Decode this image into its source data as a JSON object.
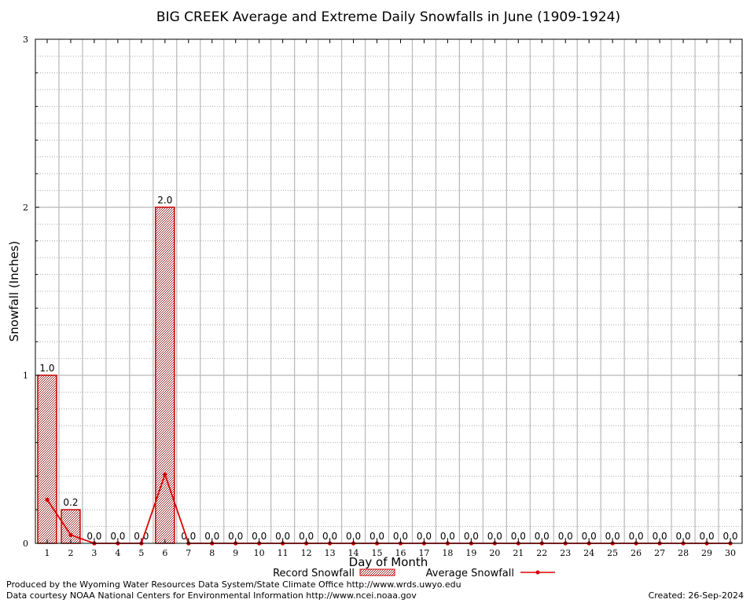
{
  "chart_data": {
    "type": "bar",
    "title": "BIG CREEK Average and Extreme Daily Snowfalls in June (1909-1924)",
    "xlabel": "Day of Month",
    "ylabel": "Snowfall (Inches)",
    "ylim": [
      0,
      3
    ],
    "yticks": [
      "0",
      "1",
      "2",
      "3"
    ],
    "grid": true,
    "legend_position": "bottom-center",
    "categories": [
      "1",
      "2",
      "3",
      "4",
      "5",
      "6",
      "7",
      "8",
      "9",
      "10",
      "11",
      "12",
      "13",
      "14",
      "15",
      "16",
      "17",
      "18",
      "19",
      "20",
      "21",
      "22",
      "23",
      "24",
      "25",
      "26",
      "27",
      "28",
      "29",
      "30"
    ],
    "series": [
      {
        "name": "Record Snowfall",
        "kind": "bar",
        "color": "#cc0000",
        "values": [
          1.0,
          0.2,
          0,
          0,
          0,
          2.0,
          0,
          0,
          0,
          0,
          0,
          0,
          0,
          0,
          0,
          0,
          0,
          0,
          0,
          0,
          0,
          0,
          0,
          0,
          0,
          0,
          0,
          0,
          0,
          0
        ],
        "labels": [
          "1.0",
          "0.2",
          "0.0",
          "0.0",
          "0.0",
          "2.0",
          "0.0",
          "0.0",
          "0.0",
          "0.0",
          "0.0",
          "0.0",
          "0.0",
          "0.0",
          "0.0",
          "0.0",
          "0.0",
          "0.0",
          "0.0",
          "0.0",
          "0.0",
          "0.0",
          "0.0",
          "0.0",
          "0.0",
          "0.0",
          "0.0",
          "0.0",
          "0.0",
          "0.0"
        ]
      },
      {
        "name": "Average Snowfall",
        "kind": "line",
        "color": "#dd0000",
        "values": [
          0.26,
          0.05,
          0,
          0,
          0,
          0.41,
          0,
          0,
          0,
          0,
          0,
          0,
          0,
          0,
          0,
          0,
          0,
          0,
          0,
          0,
          0,
          0,
          0,
          0,
          0,
          0,
          0,
          0,
          0,
          0
        ]
      }
    ]
  },
  "footer": {
    "credit1": "Produced by the Wyoming Water Resources Data System/State Climate Office http://www.wrds.uwyo.edu",
    "credit2": "Data courtesy NOAA National Centers for Environmental Information http://www.ncei.noaa.gov",
    "created": "Created:  26-Sep-2024"
  }
}
